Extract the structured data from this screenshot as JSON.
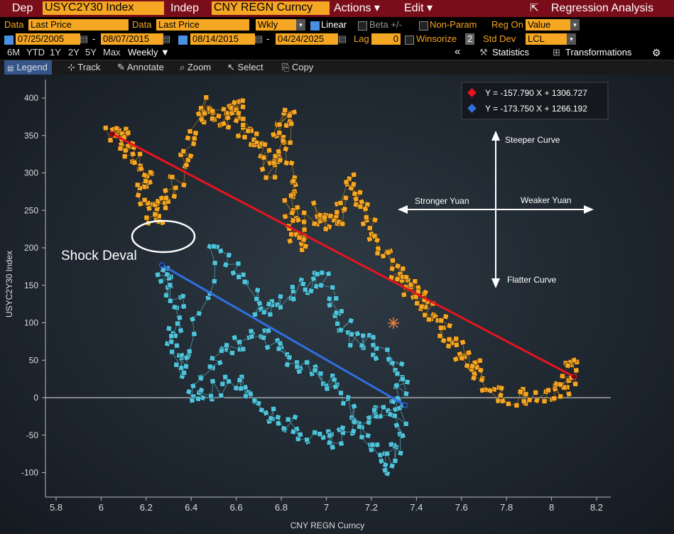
{
  "header": {
    "dep_label": "Dep",
    "dep_ticker": "USYC2Y30 Index",
    "indep_label": "Indep",
    "indep_ticker": "CNY REGN Curncy",
    "actions": "Actions ▾",
    "edit": "Edit ▾",
    "title": "Regression Analysis"
  },
  "row2": {
    "data1_label": "Data",
    "data1_value": "Last Price",
    "data2_label": "Data",
    "data2_value": "Last Price",
    "freq": "Wkly",
    "linear": "Linear",
    "beta": "Beta +/-",
    "nonparam": "Non-Param",
    "regon_label": "Reg On",
    "regon_value": "Value"
  },
  "row3": {
    "start1": "07/25/2005",
    "end1": "08/07/2015",
    "start2": "08/14/2015",
    "end2": "04/24/2025",
    "dash": "-",
    "lag_label": "Lag",
    "lag_value": "0",
    "winsorize": "Winsorize",
    "stddev_value": "2",
    "stddev_label": "Std Dev",
    "lcl": "LCL"
  },
  "row4": {
    "periods": [
      "6M",
      "YTD",
      "1Y",
      "2Y",
      "5Y",
      "Max"
    ],
    "weekly": "Weekly ▼",
    "collapse": "«",
    "statistics": "Statistics",
    "transformations": "Transformations"
  },
  "toolbar": {
    "legend": "Legend",
    "track": "Track",
    "annotate": "Annotate",
    "zoom": "Zoom",
    "select": "Select",
    "copy": "Copy"
  },
  "colors": {
    "series1": "#f5a623",
    "series2": "#4ec3db",
    "reg1": "#e8141e",
    "reg2": "#2f6fe0",
    "accent": "#f5a623",
    "header_bar": "#7a0d1a"
  },
  "chart_data": {
    "type": "scatter",
    "title": "Regression Analysis",
    "xlabel": "CNY REGN Curncy",
    "ylabel": "USYC2Y30 Index",
    "xlim": [
      5.75,
      8.25
    ],
    "ylim": [
      -125,
      430
    ],
    "xticks": [
      5.8,
      6,
      6.2,
      6.4,
      6.6,
      6.8,
      7,
      7.2,
      7.4,
      7.6,
      7.8,
      8,
      8.2
    ],
    "yticks": [
      -100,
      -50,
      0,
      50,
      100,
      150,
      200,
      250,
      300,
      350,
      400
    ],
    "legend": [
      {
        "label": "Y = -157.790 X + 1306.727",
        "color": "#e8141e"
      },
      {
        "label": "Y = -173.750 X + 1266.192",
        "color": "#2f6fe0"
      }
    ],
    "series": [
      {
        "name": "07/25/2005 - 08/07/2015",
        "color": "#f5a623",
        "points": [
          [
            6.05,
            350
          ],
          [
            6.08,
            355
          ],
          [
            6.1,
            340
          ],
          [
            6.15,
            320
          ],
          [
            6.2,
            300
          ],
          [
            6.18,
            280
          ],
          [
            6.22,
            250
          ],
          [
            6.25,
            240
          ],
          [
            6.3,
            260
          ],
          [
            6.35,
            300
          ],
          [
            6.4,
            350
          ],
          [
            6.45,
            390
          ],
          [
            6.5,
            380
          ],
          [
            6.55,
            370
          ],
          [
            6.6,
            390
          ],
          [
            6.62,
            380
          ],
          [
            6.65,
            350
          ],
          [
            6.7,
            330
          ],
          [
            6.75,
            300
          ],
          [
            6.78,
            330
          ],
          [
            6.8,
            370
          ],
          [
            6.83,
            380
          ],
          [
            6.84,
            300
          ],
          [
            6.83,
            260
          ],
          [
            6.85,
            240
          ],
          [
            6.88,
            200
          ],
          [
            6.9,
            220
          ],
          [
            6.95,
            250
          ],
          [
            7,
            230
          ],
          [
            7.05,
            240
          ],
          [
            7.1,
            290
          ],
          [
            7.15,
            260
          ],
          [
            7.2,
            230
          ],
          [
            7.25,
            200
          ],
          [
            7.3,
            170
          ],
          [
            7.35,
            150
          ],
          [
            7.4,
            140
          ],
          [
            7.45,
            120
          ],
          [
            7.5,
            100
          ],
          [
            7.55,
            80
          ],
          [
            7.6,
            60
          ],
          [
            7.65,
            40
          ],
          [
            7.7,
            20
          ],
          [
            7.8,
            0
          ],
          [
            7.9,
            5
          ],
          [
            8,
            0
          ],
          [
            8.05,
            10
          ],
          [
            8.08,
            30
          ],
          [
            8.1,
            50
          ]
        ]
      },
      {
        "name": "08/14/2015 - 04/24/2025",
        "color": "#4ec3db",
        "points": [
          [
            6.27,
            175
          ],
          [
            6.3,
            150
          ],
          [
            6.35,
            120
          ],
          [
            6.3,
            80
          ],
          [
            6.35,
            40
          ],
          [
            6.4,
            60
          ],
          [
            6.5,
            200
          ],
          [
            6.6,
            170
          ],
          [
            6.7,
            120
          ],
          [
            6.8,
            130
          ],
          [
            6.9,
            150
          ],
          [
            7,
            160
          ],
          [
            7.05,
            110
          ],
          [
            7.1,
            80
          ],
          [
            7.2,
            70
          ],
          [
            7.3,
            40
          ],
          [
            7.35,
            20
          ],
          [
            7.3,
            -10
          ],
          [
            7.2,
            -20
          ],
          [
            7.1,
            -40
          ],
          [
            7,
            -60
          ],
          [
            6.9,
            -50
          ],
          [
            6.8,
            -30
          ],
          [
            6.7,
            -10
          ],
          [
            6.6,
            20
          ],
          [
            6.5,
            10
          ],
          [
            6.4,
            0
          ],
          [
            6.5,
            50
          ],
          [
            6.6,
            70
          ],
          [
            6.7,
            90
          ],
          [
            6.8,
            60
          ],
          [
            6.9,
            40
          ],
          [
            7,
            20
          ],
          [
            7.1,
            -10
          ],
          [
            7.2,
            -60
          ],
          [
            7.25,
            -90
          ],
          [
            7.3,
            -70
          ],
          [
            7.34,
            -10
          ]
        ]
      }
    ],
    "regression_lines": [
      {
        "color": "#e8141e",
        "from": [
          6.05,
          352
        ],
        "to": [
          8.1,
          28
        ]
      },
      {
        "color": "#2f6fe0",
        "from": [
          6.27,
          177
        ],
        "to": [
          7.35,
          -10
        ]
      }
    ],
    "annotations": {
      "shock": "Shock Deval",
      "steeper": "Steeper Curve",
      "flatter": "Flatter Curve",
      "stronger": "Stronger Yuan",
      "weaker": "Weaker Yuan"
    }
  }
}
